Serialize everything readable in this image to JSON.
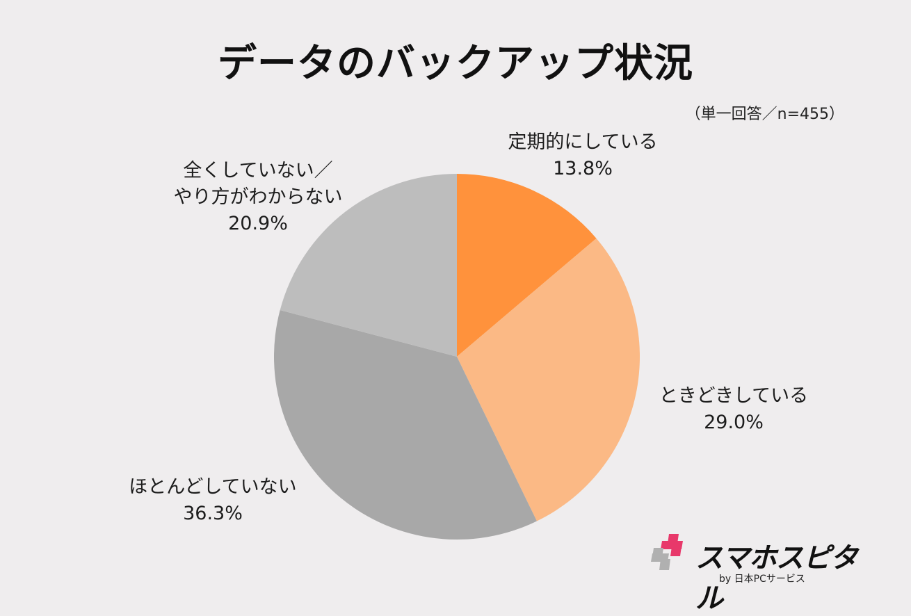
{
  "title": "データのバックアップ状況",
  "note": "（単一回答／n=455）",
  "logo": {
    "name": "スマホスピタル",
    "sub": "by  日本PCサービス",
    "colors": {
      "pink": "#e8386a",
      "gray": "#b0b0b0"
    }
  },
  "labels": [
    {
      "name": "定期的にしている",
      "pct": "13.8%"
    },
    {
      "name": "ときどきしている",
      "pct": "29.0%"
    },
    {
      "name": "ほとんどしていない",
      "pct": "36.3%"
    },
    {
      "name_line1": "全くしていない／",
      "name_line2": "やり方がわからない",
      "pct": "20.9%"
    }
  ],
  "chart_data": {
    "type": "pie",
    "title": "データのバックアップ状況",
    "subtitle": "（単一回答／n=455）",
    "categories": [
      "定期的にしている",
      "ときどきしている",
      "ほとんどしていない",
      "全くしていない／やり方がわからない"
    ],
    "values": [
      13.8,
      29.0,
      36.3,
      20.9
    ],
    "unit": "%",
    "colors": [
      "#ff923c",
      "#fbb985",
      "#a8a8a8",
      "#bdbdbd"
    ],
    "start_angle": "12 o'clock, clockwise",
    "n": 455,
    "legend": "none (direct labels)"
  }
}
